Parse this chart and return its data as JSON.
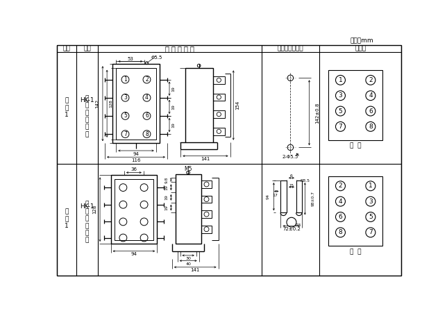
{
  "title": "单位：mm",
  "col_headers": [
    "图号",
    "结构",
    "外 形 尺 尸 图",
    "安装开孔尺尸图",
    "端子图"
  ],
  "row1_col1": "附\n图\n1",
  "row1_col2": "HK-1\n\n凸\n出\n式\n前\n接\n线",
  "row2_col1": "附\n图\n1",
  "row2_col2": "HK-1\n\n凸\n出\n式\n后\n接\n线",
  "front_view": "前  视",
  "back_view": "背  视",
  "bg_color": "#ffffff"
}
